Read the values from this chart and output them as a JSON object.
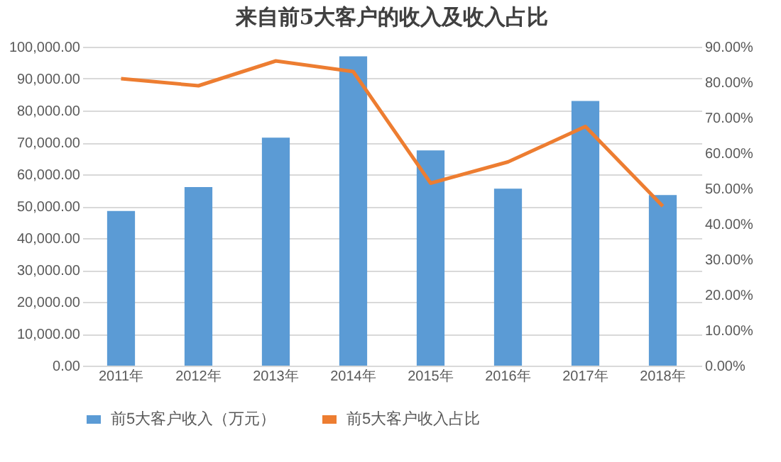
{
  "chart_data": {
    "type": "bar",
    "title": "来自前5大客户的收入及收入占比",
    "categories": [
      "2011年",
      "2012年",
      "2013年",
      "2014年",
      "2015年",
      "2016年",
      "2017年",
      "2018年"
    ],
    "series": [
      {
        "name": "前5大客户收入（万元）",
        "color": "#5b9bd5",
        "values": [
          48500,
          56000,
          71500,
          97000,
          67500,
          55500,
          83000,
          53500
        ]
      },
      {
        "name": "前5大客户收入占比",
        "type": "line",
        "axis": "y2",
        "color": "#ed7d31",
        "values": [
          81,
          79,
          86,
          83,
          51.5,
          57.5,
          67.5,
          45
        ]
      }
    ],
    "ylim": [
      0,
      100000
    ],
    "yticks": [
      {
        "value": 0,
        "label": "0.00"
      },
      {
        "value": 10000,
        "label": "10,000.00"
      },
      {
        "value": 20000,
        "label": "20,000.00"
      },
      {
        "value": 30000,
        "label": "30,000.00"
      },
      {
        "value": 40000,
        "label": "40,000.00"
      },
      {
        "value": 50000,
        "label": "50,000.00"
      },
      {
        "value": 60000,
        "label": "60,000.00"
      },
      {
        "value": 70000,
        "label": "70,000.00"
      },
      {
        "value": 80000,
        "label": "80,000.00"
      },
      {
        "value": 90000,
        "label": "90,000.00"
      },
      {
        "value": 100000,
        "label": "100,000.00"
      }
    ],
    "y2lim": [
      0,
      90
    ],
    "y2ticks": [
      {
        "value": 0,
        "label": "0.00%"
      },
      {
        "value": 10,
        "label": "10.00%"
      },
      {
        "value": 20,
        "label": "20.00%"
      },
      {
        "value": 30,
        "label": "30.00%"
      },
      {
        "value": 40,
        "label": "40.00%"
      },
      {
        "value": 50,
        "label": "50.00%"
      },
      {
        "value": 60,
        "label": "60.00%"
      },
      {
        "value": 70,
        "label": "70.00%"
      },
      {
        "value": 80,
        "label": "80.00%"
      },
      {
        "value": 90,
        "label": "90.00%"
      }
    ],
    "grid": "y",
    "legend": "bottom",
    "marker": "none",
    "line_style": "solid"
  }
}
